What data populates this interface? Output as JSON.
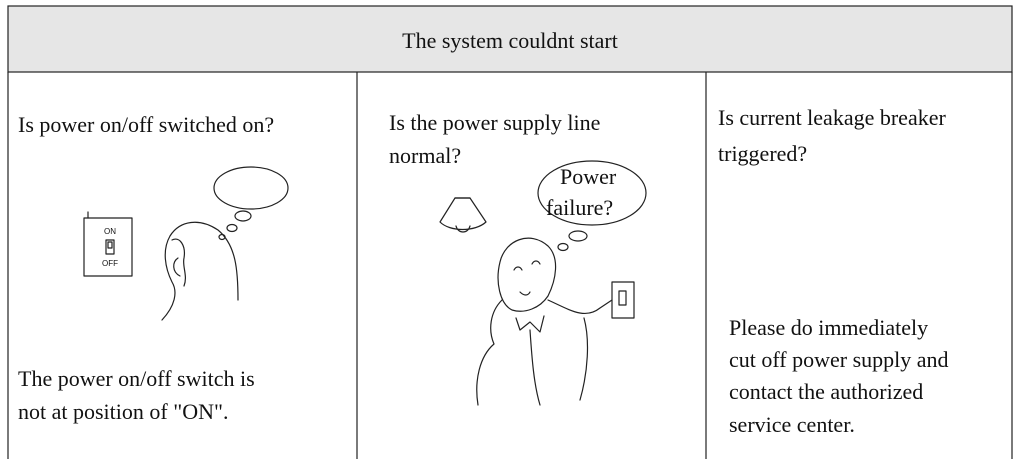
{
  "header": {
    "title": "The system couldnt start"
  },
  "columns": [
    {
      "question": [
        "Is power on/off switched on?"
      ],
      "illustration": {
        "switch_on": "ON",
        "switch_off": "OFF"
      },
      "answer": [
        "The power on/off switch is",
        "not at position of \"ON\"."
      ]
    },
    {
      "question": [
        "Is the power supply line",
        "normal?"
      ],
      "illustration": {
        "bubble": [
          "Power",
          "failure?"
        ]
      }
    },
    {
      "question": [
        "Is current leakage breaker",
        "triggered?"
      ],
      "answer": [
        "Please do immediately",
        "cut off power supply and",
        "contact the authorized",
        "service center."
      ]
    }
  ]
}
